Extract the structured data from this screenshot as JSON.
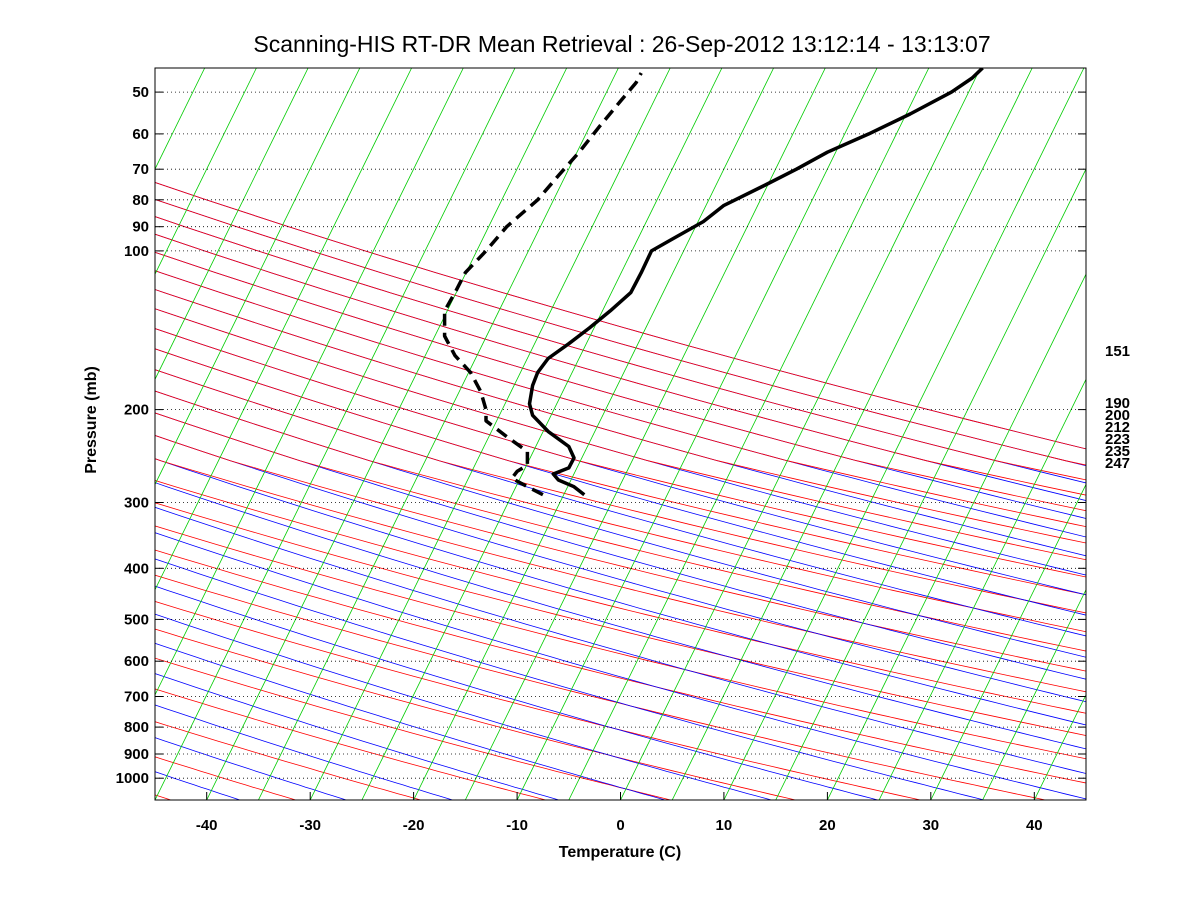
{
  "chart_data": {
    "type": "line",
    "title": "Scanning-HIS RT-DR Mean Retrieval : 26-Sep-2012 13:12:14 - 13:13:07",
    "xlabel": "Temperature (C)",
    "ylabel": "Pressure (mb)",
    "xlim": [
      -45,
      45
    ],
    "ylim": [
      1100,
      45
    ],
    "y_scale": "log",
    "x_ticks": [
      -40,
      -30,
      -20,
      -10,
      0,
      10,
      20,
      30,
      40
    ],
    "y_ticks": [
      50,
      60,
      70,
      80,
      90,
      100,
      200,
      300,
      400,
      500,
      600,
      700,
      800,
      900,
      1000
    ],
    "grid": "horizontal dotted at pressure ticks",
    "right_labels": [
      "151",
      "190",
      "200",
      "212",
      "223",
      "235",
      "247"
    ],
    "background_lines": [
      {
        "kind": "dry-adiabats",
        "color": "#0000ff"
      },
      {
        "kind": "moist-adiabats",
        "color": "#ff0000"
      },
      {
        "kind": "mixing-ratio",
        "color": "#00cc00"
      }
    ],
    "series": [
      {
        "style": "solid",
        "color": "#000000",
        "points": [
          [
            -3.5,
            290
          ],
          [
            -4.5,
            280
          ],
          [
            -6,
            272
          ],
          [
            -6.5,
            265
          ],
          [
            -5,
            258
          ],
          [
            -4.5,
            247
          ],
          [
            -5,
            235
          ],
          [
            -7,
            220
          ],
          [
            -8.5,
            205
          ],
          [
            -8.8,
            195
          ],
          [
            -8.5,
            180
          ],
          [
            -8,
            170
          ],
          [
            -7,
            160
          ],
          [
            -5,
            150
          ],
          [
            -3,
            140
          ],
          [
            -1,
            130
          ],
          [
            1,
            120
          ],
          [
            2,
            110
          ],
          [
            3,
            100
          ],
          [
            5,
            95
          ],
          [
            8,
            88
          ],
          [
            10,
            82
          ],
          [
            14,
            75
          ],
          [
            17,
            70
          ],
          [
            20,
            65
          ],
          [
            24,
            60
          ],
          [
            28,
            55
          ],
          [
            32,
            50
          ],
          [
            34,
            47
          ],
          [
            35,
            45
          ]
        ]
      },
      {
        "style": "dashed",
        "color": "#000000",
        "points": [
          [
            -7.5,
            290
          ],
          [
            -9,
            280
          ],
          [
            -10.5,
            270
          ],
          [
            -10,
            262
          ],
          [
            -9,
            255
          ],
          [
            -9,
            240
          ],
          [
            -11,
            225
          ],
          [
            -13,
            210
          ],
          [
            -13,
            200
          ],
          [
            -13.5,
            185
          ],
          [
            -14.5,
            170
          ],
          [
            -16,
            158
          ],
          [
            -17,
            145
          ],
          [
            -17,
            130
          ],
          [
            -16,
            120
          ],
          [
            -15,
            110
          ],
          [
            -13,
            100
          ],
          [
            -11,
            90
          ],
          [
            -8,
            80
          ],
          [
            -6,
            72
          ],
          [
            -4,
            65
          ],
          [
            -2,
            58
          ],
          [
            0,
            52
          ],
          [
            1.5,
            48
          ],
          [
            2,
            46
          ]
        ]
      }
    ]
  }
}
